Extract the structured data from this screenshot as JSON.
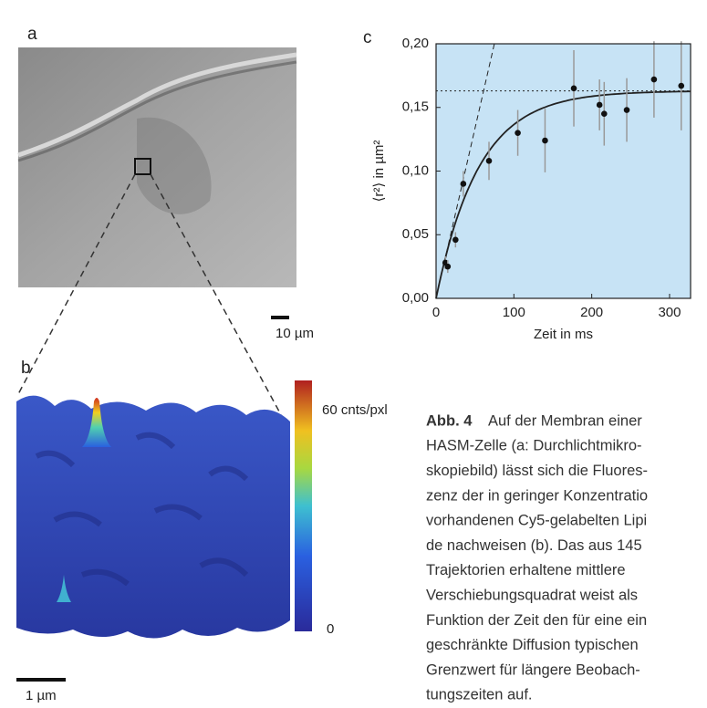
{
  "panel_a": {
    "label": "a",
    "scale_bar": "10 µm"
  },
  "panel_b": {
    "label": "b",
    "scale_bar": "1 µm",
    "colorbar_max": "60 cnts/pxl",
    "colorbar_min": "0"
  },
  "chart_data": {
    "type": "scatter",
    "panel_label": "c",
    "xlabel": "Zeit in ms",
    "ylabel": "⟨r²⟩ in µm²",
    "x": [
      12,
      15,
      25,
      35,
      68,
      105,
      140,
      177,
      210,
      216,
      245,
      280,
      315
    ],
    "series": [
      {
        "values": [
          0.028,
          0.025,
          0.046,
          0.09,
          0.108,
          0.13,
          0.124,
          0.165,
          0.152,
          0.145,
          0.148,
          0.172,
          0.167
        ],
        "errors": [
          0.005,
          0.005,
          0.006,
          0.01,
          0.015,
          0.018,
          0.025,
          0.03,
          0.02,
          0.025,
          0.025,
          0.03,
          0.035
        ],
        "color": "#111111"
      }
    ],
    "xlim": [
      0,
      327
    ],
    "ylim": [
      0,
      0.2
    ],
    "xticks": [
      0,
      100,
      200,
      300
    ],
    "yticks": [
      {
        "value": 0,
        "label": "0,00"
      },
      {
        "value": 0.05,
        "label": "0,05"
      },
      {
        "value": 0.1,
        "label": "0,10"
      },
      {
        "value": 0.15,
        "label": "0,15"
      },
      {
        "value": 0.2,
        "label": "0,20"
      }
    ],
    "background": "#c7e3f5",
    "fit": {
      "plateau": 0.163,
      "tau": 55,
      "slope": 0.00267
    }
  },
  "caption": {
    "label": "Abb. 4",
    "lines": [
      "Auf der Membran einer",
      "HASM-Zelle (a: Durchlichtmikro-",
      "skopiebild) lässt sich die Fluores-",
      "zenz der in geringer Konzentratio",
      "vorhandenen Cy5-gelabelten Lipi",
      "de nachweisen (b). Das aus 145",
      "Trajektorien erhaltene mittlere",
      "Verschiebungsquadrat weist als",
      "Funktion der Zeit den für eine ein",
      "geschränkte Diffusion typischen",
      "Grenzwert für längere Beobach-",
      "tungszeiten auf."
    ]
  }
}
